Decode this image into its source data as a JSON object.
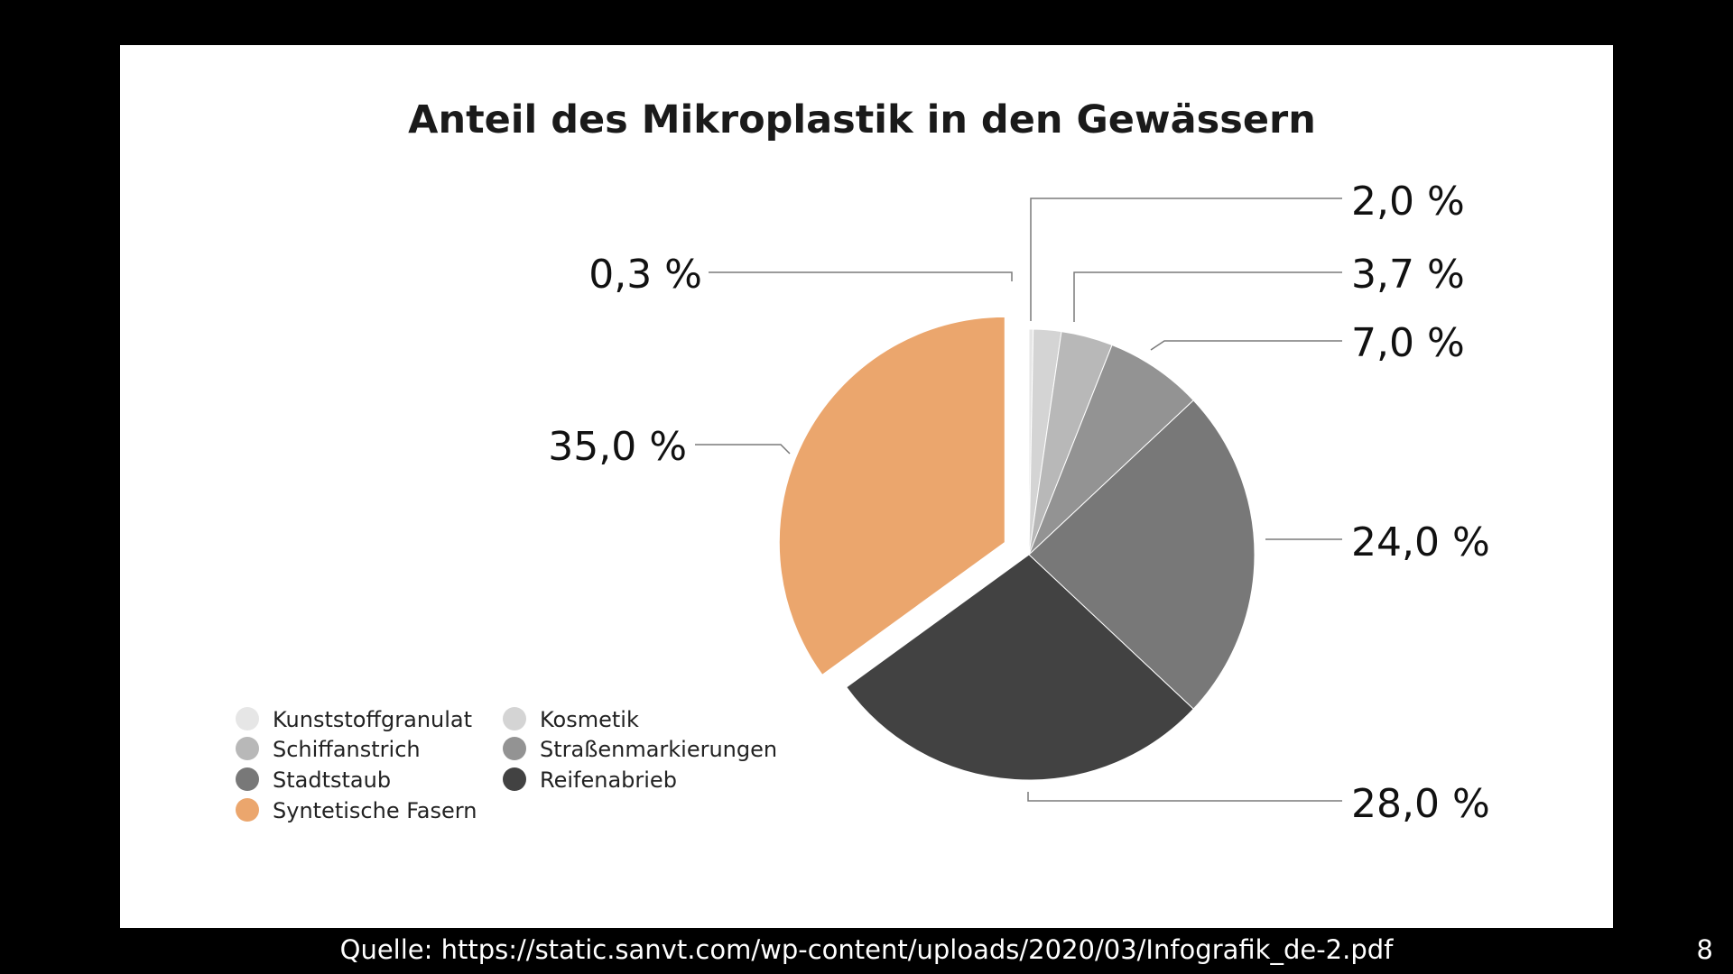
{
  "slide": {
    "source": "Quelle: https://static.sanvt.com/wp-content/uploads/2020/03/Infografik_de-2.pdf",
    "page_number": "8"
  },
  "chart_data": {
    "type": "pie",
    "title": "Anteil des Mikroplastik in den Gewässern",
    "legend_position": "bottom-left",
    "slices": [
      {
        "name": "Kunststoffgranulat",
        "value": 0.3,
        "label": "0,3 %",
        "color": "#e6e6e6",
        "exploded": false
      },
      {
        "name": "Kosmetik",
        "value": 2.0,
        "label": "2,0 %",
        "color": "#d4d4d4",
        "exploded": false
      },
      {
        "name": "Schiffanstrich",
        "value": 3.7,
        "label": "3,7 %",
        "color": "#b8b8b8",
        "exploded": false
      },
      {
        "name": "Straßenmarkierungen",
        "value": 7.0,
        "label": "7,0 %",
        "color": "#939393",
        "exploded": false
      },
      {
        "name": "Stadtstaub",
        "value": 24.0,
        "label": "24,0 %",
        "color": "#787878",
        "exploded": false
      },
      {
        "name": "Reifenabrieb",
        "value": 28.0,
        "label": "28,0 %",
        "color": "#424242",
        "exploded": false
      },
      {
        "name": "Syntetische Fasern",
        "value": 35.0,
        "label": "35,0 %",
        "color": "#eba66d",
        "exploded": true
      }
    ],
    "legend_order": [
      "Kunststoffgranulat",
      "Kosmetik",
      "Schiffanstrich",
      "Straßenmarkierungen",
      "Stadtstaub",
      "Reifenabrieb",
      "Syntetische Fasern"
    ]
  }
}
